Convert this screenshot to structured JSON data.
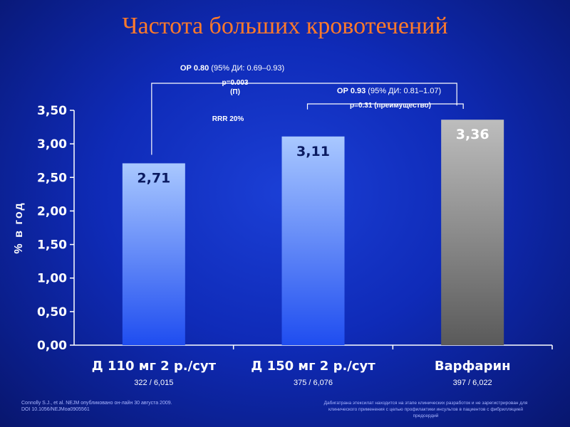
{
  "slide": {
    "title": "Частота больших кровотечений",
    "footnote_left": [
      "Connolly S.J., et al. NEJM опубликовано он-лайн 30 августа 2009.",
      "DOI 10.1056/NEJMoa0905561"
    ],
    "footnote_right": [
      "Дабигатрана этексилат находится на этапе клинических разработок и не зарегистрирован для",
      "клинического применения с целью профилактики инсультов в пациентов с фибрилляцией",
      "предсердий"
    ]
  },
  "colors": {
    "title": "#ff7a2a",
    "bar_blue_top": "#a9c8ff",
    "bar_blue_bottom": "#1f4df0",
    "bar_gray_top": "#bdbdbd",
    "bar_gray_bottom": "#5a5a5a",
    "text": "#ffffff"
  },
  "chart_data": {
    "type": "bar",
    "categories": [
      "Д 110 мг 2 р./сут",
      "Д 150 мг 2 р./сут",
      "Варфарин"
    ],
    "sublabels": [
      "322 / 6,015",
      "375 / 6,076",
      "397 / 6,022"
    ],
    "values": [
      2.71,
      3.11,
      3.36
    ],
    "value_labels": [
      "2,71",
      "3,11",
      "3,36"
    ],
    "bar_colors": [
      "blue",
      "blue",
      "gray"
    ],
    "ylabel": "% в год",
    "ylim": [
      0,
      3.5
    ],
    "yticks": [
      "0,00",
      "0,50",
      "1,00",
      "1,50",
      "2,00",
      "2,50",
      "3,00",
      "3,50"
    ],
    "annotations": {
      "comparison1": {
        "or_bold": "ОР 0.80",
        "or_rest": " (95% ДИ: 0.69–0.93)",
        "p_line1": "p=0.003",
        "p_line2": "(П)",
        "rrr": "RRR 20%"
      },
      "comparison2": {
        "or_bold": "ОР 0.93",
        "or_rest": " (95% ДИ: 0.81–1.07)",
        "p_line": "p=0.31 (преимущество)"
      }
    }
  }
}
